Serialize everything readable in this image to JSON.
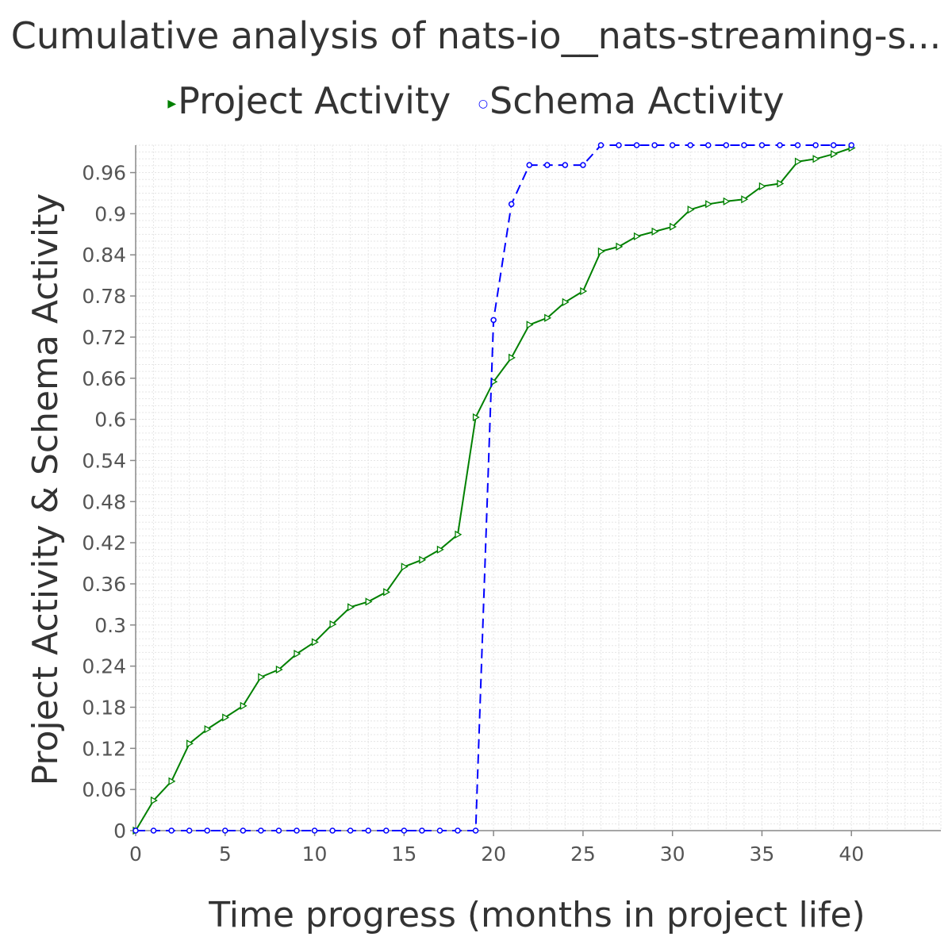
{
  "chart_data": {
    "type": "line",
    "title": "Cumulative analysis of nats-io__nats-streaming-s...",
    "xlabel": "Time progress (months in project life)",
    "ylabel": "Project Activity & Schema Activity",
    "xlim": [
      0,
      45
    ],
    "ylim": [
      0,
      1.0
    ],
    "x_ticks": [
      0,
      5,
      10,
      15,
      20,
      25,
      30,
      35,
      40
    ],
    "y_ticks": [
      0,
      0.06,
      0.12,
      0.18,
      0.24,
      0.3,
      0.36,
      0.42,
      0.48,
      0.54,
      0.6,
      0.66,
      0.72,
      0.78,
      0.84,
      0.9,
      0.96
    ],
    "grid": true,
    "legend_position": "top",
    "series": [
      {
        "name": "Project Activity",
        "color": "#008000",
        "style": "solid",
        "marker": "triangle-right",
        "x": [
          0,
          1,
          2,
          3,
          4,
          5,
          6,
          7,
          8,
          9,
          10,
          11,
          12,
          13,
          14,
          15,
          16,
          17,
          18,
          19,
          20,
          21,
          22,
          23,
          24,
          25,
          26,
          27,
          28,
          29,
          30,
          31,
          32,
          33,
          34,
          35,
          36,
          37,
          38,
          39,
          40
        ],
        "y": [
          0.0,
          0.044,
          0.072,
          0.127,
          0.148,
          0.165,
          0.182,
          0.224,
          0.235,
          0.258,
          0.275,
          0.301,
          0.326,
          0.334,
          0.348,
          0.385,
          0.395,
          0.41,
          0.432,
          0.603,
          0.655,
          0.69,
          0.738,
          0.748,
          0.771,
          0.787,
          0.845,
          0.852,
          0.867,
          0.874,
          0.881,
          0.906,
          0.914,
          0.918,
          0.921,
          0.94,
          0.944,
          0.976,
          0.98,
          0.987,
          0.996
        ]
      },
      {
        "name": "Schema Activity",
        "color": "#0000ff",
        "style": "dashed",
        "marker": "circle",
        "x": [
          0,
          1,
          2,
          3,
          4,
          5,
          6,
          7,
          8,
          9,
          10,
          11,
          12,
          13,
          14,
          15,
          16,
          17,
          18,
          19,
          20,
          21,
          22,
          23,
          24,
          25,
          26,
          27,
          28,
          29,
          30,
          31,
          32,
          33,
          34,
          35,
          36,
          37,
          38,
          39,
          40
        ],
        "y": [
          0,
          0,
          0,
          0,
          0,
          0,
          0,
          0,
          0,
          0,
          0,
          0,
          0,
          0,
          0,
          0,
          0,
          0,
          0,
          0,
          0.745,
          0.914,
          0.971,
          0.971,
          0.971,
          0.971,
          1.0,
          1.0,
          1.0,
          1.0,
          1.0,
          1.0,
          1.0,
          1.0,
          1.0,
          1.0,
          1.0,
          1.0,
          1.0,
          1.0,
          1.0
        ]
      }
    ]
  }
}
